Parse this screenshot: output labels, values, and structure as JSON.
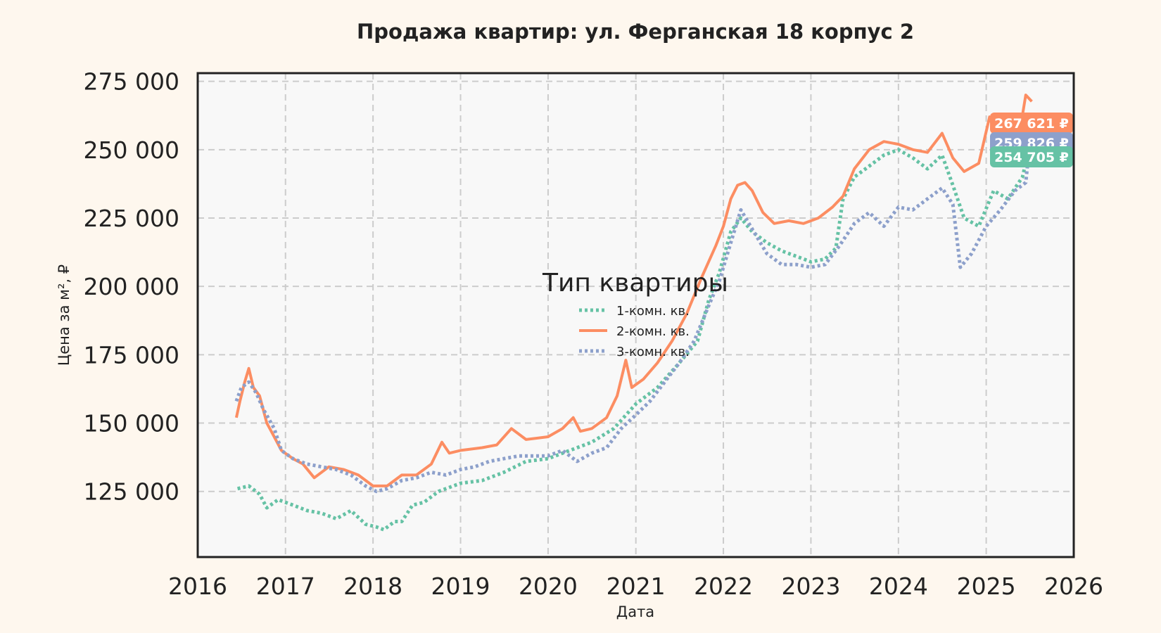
{
  "chart_data": {
    "type": "line",
    "title": "Продажа квартир: ул. Ферганская 18 корпус 2",
    "xlabel": "Дата",
    "ylabel": "Цена за м², ₽",
    "xlim": [
      "2016-01-01",
      "2026-01-01"
    ],
    "ylim": [
      101000,
      278000
    ],
    "x_ticks": [
      "2016",
      "2017",
      "2018",
      "2019",
      "2020",
      "2021",
      "2022",
      "2023",
      "2024",
      "2025",
      "2026"
    ],
    "y_ticks": [
      "125 000",
      "150 000",
      "175 000",
      "200 000",
      "225 000",
      "250 000",
      "275 000"
    ],
    "y_tick_values": [
      125000,
      150000,
      175000,
      200000,
      225000,
      250000,
      275000
    ],
    "grid": true,
    "legend": {
      "title": "Тип квартиры",
      "placement": "center"
    },
    "series": [
      {
        "name": "1-комн. кв.",
        "color": "#66c2a5",
        "style": "dotted",
        "end_label": "254 705 ₽",
        "points": [
          [
            "2016-06-15",
            126000
          ],
          [
            "2016-08-01",
            127000
          ],
          [
            "2016-09-15",
            124000
          ],
          [
            "2016-10-15",
            119000
          ],
          [
            "2016-12-01",
            122000
          ],
          [
            "2017-02-01",
            120000
          ],
          [
            "2017-04-01",
            118000
          ],
          [
            "2017-06-01",
            117000
          ],
          [
            "2017-08-01",
            115000
          ],
          [
            "2017-10-01",
            118000
          ],
          [
            "2017-12-01",
            113000
          ],
          [
            "2018-01-15",
            112000
          ],
          [
            "2018-02-15",
            111000
          ],
          [
            "2018-04-01",
            114000
          ],
          [
            "2018-05-01",
            114000
          ],
          [
            "2018-06-15",
            120000
          ],
          [
            "2018-08-01",
            121000
          ],
          [
            "2018-10-01",
            125000
          ],
          [
            "2019-01-01",
            128000
          ],
          [
            "2019-04-01",
            129000
          ],
          [
            "2019-07-01",
            132000
          ],
          [
            "2019-10-01",
            136000
          ],
          [
            "2020-01-01",
            137000
          ],
          [
            "2020-04-01",
            140000
          ],
          [
            "2020-07-01",
            143000
          ],
          [
            "2020-10-01",
            148000
          ],
          [
            "2021-01-01",
            157000
          ],
          [
            "2021-04-01",
            163000
          ],
          [
            "2021-07-01",
            172000
          ],
          [
            "2021-09-15",
            180000
          ],
          [
            "2021-11-01",
            195000
          ],
          [
            "2021-12-15",
            205000
          ],
          [
            "2022-02-01",
            220000
          ],
          [
            "2022-03-15",
            225000
          ],
          [
            "2022-05-01",
            220000
          ],
          [
            "2022-07-01",
            216000
          ],
          [
            "2022-09-01",
            213000
          ],
          [
            "2022-11-01",
            211000
          ],
          [
            "2023-01-01",
            209000
          ],
          [
            "2023-03-01",
            210000
          ],
          [
            "2023-04-15",
            214000
          ],
          [
            "2023-05-15",
            232000
          ],
          [
            "2023-07-01",
            240000
          ],
          [
            "2023-09-01",
            244000
          ],
          [
            "2023-11-01",
            248000
          ],
          [
            "2024-01-01",
            250000
          ],
          [
            "2024-03-01",
            247000
          ],
          [
            "2024-05-01",
            243000
          ],
          [
            "2024-07-01",
            248000
          ],
          [
            "2024-08-15",
            237000
          ],
          [
            "2024-10-01",
            225000
          ],
          [
            "2024-12-01",
            222000
          ],
          [
            "2025-02-01",
            235000
          ],
          [
            "2025-04-01",
            232000
          ],
          [
            "2025-06-01",
            240000
          ],
          [
            "2025-07-10",
            254705
          ]
        ]
      },
      {
        "name": "2-комн. кв.",
        "color": "#fc8d62",
        "style": "solid",
        "end_label": "267 621 ₽",
        "points": [
          [
            "2016-06-10",
            152000
          ],
          [
            "2016-06-25",
            158000
          ],
          [
            "2016-07-15",
            165000
          ],
          [
            "2016-08-01",
            170000
          ],
          [
            "2016-08-20",
            163000
          ],
          [
            "2016-09-15",
            160000
          ],
          [
            "2016-10-15",
            150000
          ],
          [
            "2016-11-15",
            145000
          ],
          [
            "2016-12-15",
            140000
          ],
          [
            "2017-02-01",
            137000
          ],
          [
            "2017-03-15",
            135000
          ],
          [
            "2017-05-01",
            130000
          ],
          [
            "2017-07-01",
            134000
          ],
          [
            "2017-09-01",
            133000
          ],
          [
            "2017-11-01",
            131000
          ],
          [
            "2018-01-01",
            127000
          ],
          [
            "2018-03-01",
            127000
          ],
          [
            "2018-05-01",
            131000
          ],
          [
            "2018-07-01",
            131000
          ],
          [
            "2018-09-01",
            135000
          ],
          [
            "2018-10-15",
            143000
          ],
          [
            "2018-11-15",
            139000
          ],
          [
            "2019-01-01",
            140000
          ],
          [
            "2019-04-01",
            141000
          ],
          [
            "2019-06-01",
            142000
          ],
          [
            "2019-08-01",
            148000
          ],
          [
            "2019-10-01",
            144000
          ],
          [
            "2020-01-01",
            145000
          ],
          [
            "2020-03-01",
            148000
          ],
          [
            "2020-04-15",
            152000
          ],
          [
            "2020-05-15",
            147000
          ],
          [
            "2020-07-01",
            148000
          ],
          [
            "2020-09-01",
            152000
          ],
          [
            "2020-10-15",
            160000
          ],
          [
            "2020-11-20",
            173000
          ],
          [
            "2020-12-15",
            163000
          ],
          [
            "2021-02-01",
            166000
          ],
          [
            "2021-04-01",
            172000
          ],
          [
            "2021-06-01",
            180000
          ],
          [
            "2021-08-01",
            190000
          ],
          [
            "2021-10-01",
            203000
          ],
          [
            "2021-12-01",
            215000
          ],
          [
            "2022-01-01",
            222000
          ],
          [
            "2022-02-01",
            232000
          ],
          [
            "2022-03-01",
            237000
          ],
          [
            "2022-04-01",
            238000
          ],
          [
            "2022-05-01",
            235000
          ],
          [
            "2022-06-15",
            227000
          ],
          [
            "2022-08-01",
            223000
          ],
          [
            "2022-10-01",
            224000
          ],
          [
            "2022-12-01",
            223000
          ],
          [
            "2023-02-01",
            225000
          ],
          [
            "2023-04-01",
            229000
          ],
          [
            "2023-05-15",
            233000
          ],
          [
            "2023-07-01",
            243000
          ],
          [
            "2023-09-01",
            250000
          ],
          [
            "2023-11-01",
            253000
          ],
          [
            "2024-01-01",
            252000
          ],
          [
            "2024-03-01",
            250000
          ],
          [
            "2024-05-01",
            249000
          ],
          [
            "2024-07-01",
            256000
          ],
          [
            "2024-08-15",
            247000
          ],
          [
            "2024-10-01",
            242000
          ],
          [
            "2024-12-01",
            245000
          ],
          [
            "2025-01-15",
            262000
          ],
          [
            "2025-03-01",
            250000
          ],
          [
            "2025-05-01",
            246000
          ],
          [
            "2025-06-15",
            270000
          ],
          [
            "2025-07-10",
            267621
          ]
        ]
      },
      {
        "name": "3-комн. кв.",
        "color": "#8da0cb",
        "style": "dotted",
        "end_label": "259 826 ₽",
        "points": [
          [
            "2016-06-10",
            158000
          ],
          [
            "2016-07-01",
            163000
          ],
          [
            "2016-08-01",
            165000
          ],
          [
            "2016-09-01",
            161000
          ],
          [
            "2016-10-01",
            155000
          ],
          [
            "2016-11-15",
            148000
          ],
          [
            "2016-12-15",
            140000
          ],
          [
            "2017-02-01",
            137000
          ],
          [
            "2017-04-01",
            135000
          ],
          [
            "2017-06-01",
            134000
          ],
          [
            "2017-08-01",
            133000
          ],
          [
            "2017-10-01",
            131000
          ],
          [
            "2017-12-01",
            127000
          ],
          [
            "2018-01-15",
            125000
          ],
          [
            "2018-03-01",
            126000
          ],
          [
            "2018-05-01",
            129000
          ],
          [
            "2018-07-01",
            130000
          ],
          [
            "2018-09-01",
            132000
          ],
          [
            "2018-11-01",
            131000
          ],
          [
            "2019-01-01",
            133000
          ],
          [
            "2019-03-01",
            134000
          ],
          [
            "2019-05-01",
            136000
          ],
          [
            "2019-07-01",
            137000
          ],
          [
            "2019-09-01",
            138000
          ],
          [
            "2019-11-01",
            138000
          ],
          [
            "2020-01-01",
            138000
          ],
          [
            "2020-03-01",
            140000
          ],
          [
            "2020-05-01",
            136000
          ],
          [
            "2020-07-01",
            139000
          ],
          [
            "2020-09-01",
            141000
          ],
          [
            "2020-11-01",
            148000
          ],
          [
            "2021-01-01",
            153000
          ],
          [
            "2021-03-01",
            158000
          ],
          [
            "2021-05-01",
            165000
          ],
          [
            "2021-07-01",
            172000
          ],
          [
            "2021-09-01",
            180000
          ],
          [
            "2021-11-01",
            193000
          ],
          [
            "2021-12-15",
            202000
          ],
          [
            "2022-02-01",
            216000
          ],
          [
            "2022-03-15",
            228000
          ],
          [
            "2022-05-01",
            221000
          ],
          [
            "2022-07-01",
            212000
          ],
          [
            "2022-09-01",
            208000
          ],
          [
            "2022-11-01",
            208000
          ],
          [
            "2023-01-01",
            207000
          ],
          [
            "2023-03-01",
            208000
          ],
          [
            "2023-05-01",
            215000
          ],
          [
            "2023-07-01",
            223000
          ],
          [
            "2023-09-01",
            227000
          ],
          [
            "2023-11-01",
            222000
          ],
          [
            "2024-01-01",
            229000
          ],
          [
            "2024-03-01",
            228000
          ],
          [
            "2024-05-01",
            232000
          ],
          [
            "2024-07-01",
            236000
          ],
          [
            "2024-08-15",
            230000
          ],
          [
            "2024-09-15",
            207000
          ],
          [
            "2024-11-01",
            212000
          ],
          [
            "2025-01-01",
            222000
          ],
          [
            "2025-03-01",
            228000
          ],
          [
            "2025-05-01",
            235000
          ],
          [
            "2025-06-15",
            238000
          ],
          [
            "2025-07-10",
            259826
          ]
        ]
      }
    ]
  }
}
